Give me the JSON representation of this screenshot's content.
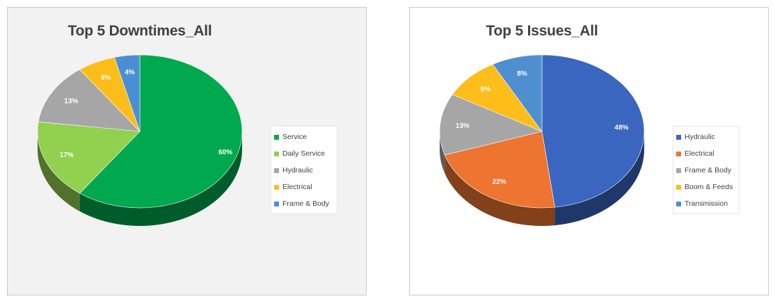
{
  "chart_data": [
    {
      "type": "pie",
      "title": "Top 5 Downtimes_All",
      "categories": [
        "Service",
        "Daily Service",
        "Hydraulic",
        "Electrical",
        "Frame & Body"
      ],
      "values": [
        60,
        17,
        13,
        6,
        4
      ],
      "labels": [
        "60%",
        "17%",
        "13%",
        "6%",
        "4%"
      ],
      "colors": [
        "#00a94f",
        "#92d050",
        "#a6a6a6",
        "#fbbd19",
        "#4a8fd4"
      ],
      "legend_position": "right",
      "style": "3d"
    },
    {
      "type": "pie",
      "title": "Top 5 Issues_All",
      "categories": [
        "Hydraulic",
        "Electrical",
        "Frame & Body",
        "Boom & Feeds",
        "Transmission"
      ],
      "values": [
        48,
        22,
        13,
        9,
        8
      ],
      "labels": [
        "48%",
        "22%",
        "13%",
        "9%",
        "8%"
      ],
      "colors": [
        "#3a66bf",
        "#ed7431",
        "#a6a6a6",
        "#fdbd1b",
        "#4f8fd0"
      ],
      "legend_position": "right",
      "style": "3d"
    }
  ]
}
